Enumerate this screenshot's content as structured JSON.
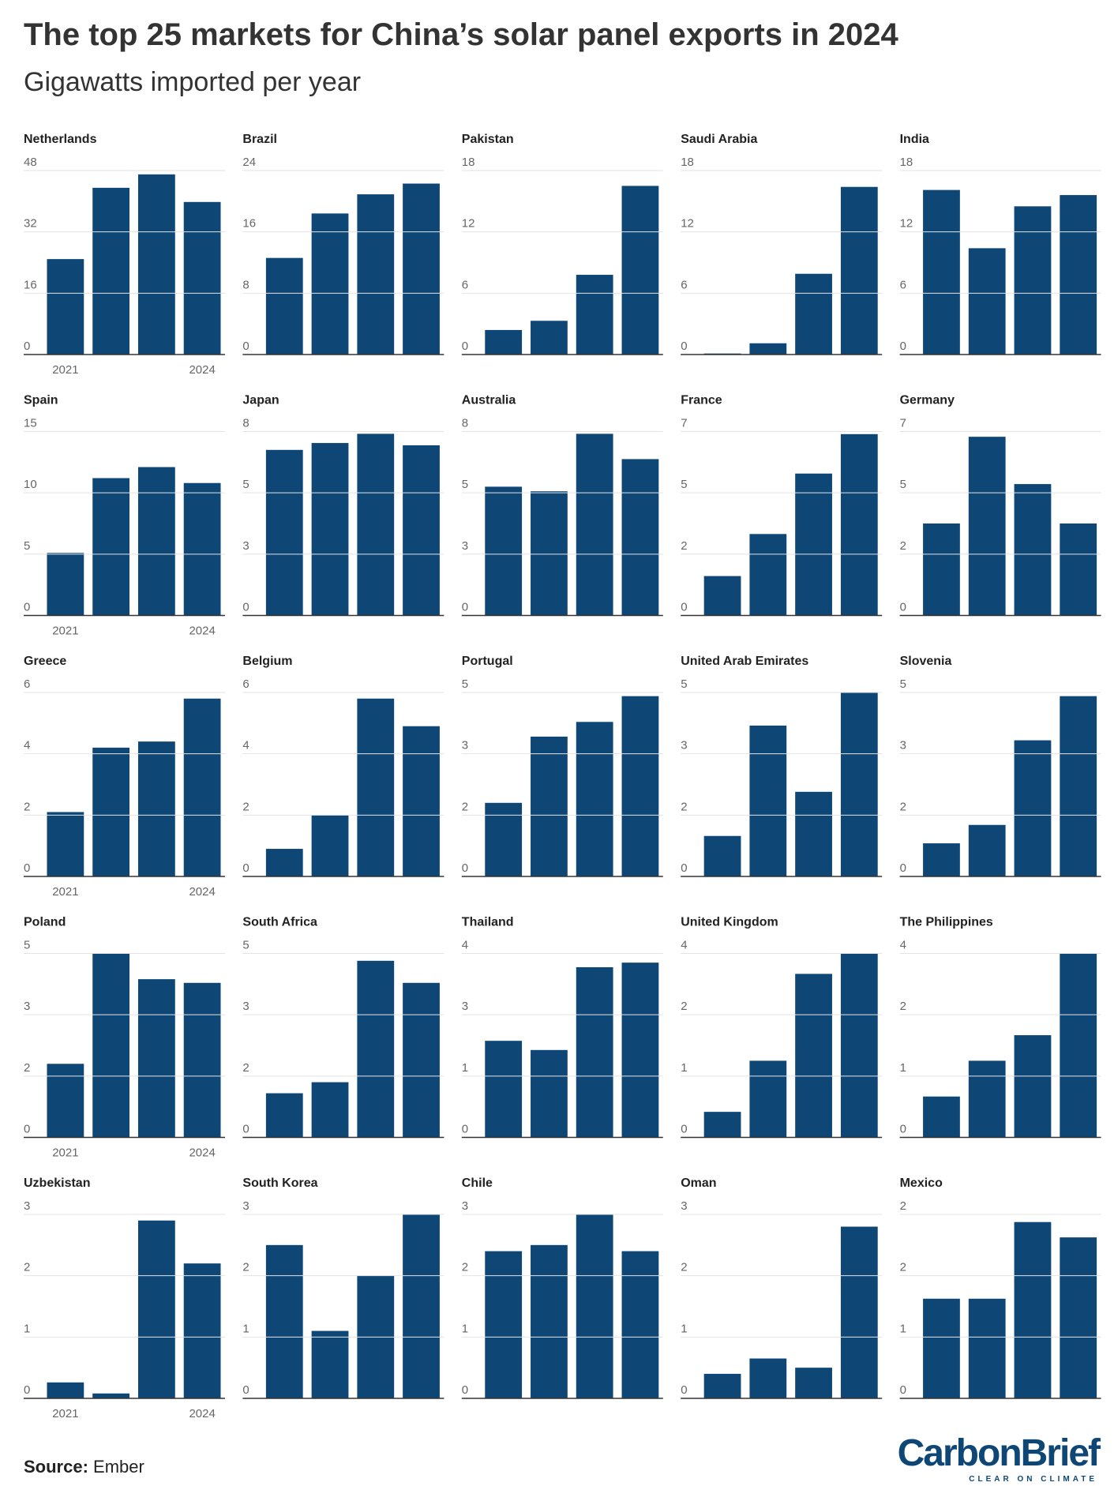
{
  "title": "The top 25 markets for China’s solar panel exports in 2024",
  "subtitle": "Gigawatts imported per year",
  "source_label": "Source:",
  "source": "Ember",
  "logo": {
    "name": "CarbonBrief",
    "tagline": "CLEAR ON CLIMATE"
  },
  "chart_data": [
    {
      "type": "bar",
      "title": "Netherlands",
      "categories": [
        "2021",
        null,
        null,
        "2024"
      ],
      "values": [
        24.9,
        43.5,
        47.0,
        39.8
      ],
      "color": "#0e4775",
      "ylim": [
        0,
        48
      ],
      "yticks": [
        0,
        16,
        32,
        48
      ],
      "grid": true
    },
    {
      "type": "bar",
      "title": "Brazil",
      "values": [
        12.6,
        18.4,
        20.9,
        22.3
      ],
      "color": "#0e4775",
      "ylim": [
        0,
        24
      ],
      "yticks": [
        0,
        8,
        16,
        24
      ],
      "grid": true
    },
    {
      "type": "bar",
      "title": "Pakistan",
      "values": [
        2.4,
        3.3,
        7.8,
        16.5
      ],
      "color": "#0e4775",
      "ylim": [
        0,
        18
      ],
      "yticks": [
        0,
        6,
        12,
        18
      ],
      "grid": true
    },
    {
      "type": "bar",
      "title": "Saudi Arabia",
      "values": [
        0.1,
        1.1,
        7.9,
        16.4
      ],
      "color": "#0e4775",
      "ylim": [
        0,
        18
      ],
      "yticks": [
        0,
        6,
        12,
        18
      ],
      "grid": true
    },
    {
      "type": "bar",
      "title": "India",
      "values": [
        16.1,
        10.4,
        14.5,
        15.6
      ],
      "color": "#0e4775",
      "ylim": [
        0,
        18
      ],
      "yticks": [
        0,
        6,
        12,
        18
      ],
      "grid": true
    },
    {
      "type": "bar",
      "title": "Spain",
      "categories": [
        "2021",
        null,
        null,
        "2024"
      ],
      "values": [
        5.1,
        11.2,
        12.1,
        10.8
      ],
      "color": "#0e4775",
      "ylim": [
        0,
        15
      ],
      "yticks": [
        0,
        5,
        10,
        15
      ],
      "grid": true
    },
    {
      "type": "bar",
      "title": "Japan",
      "values": [
        7.2,
        7.5,
        7.9,
        7.4
      ],
      "color": "#0e4775",
      "ylim": [
        0,
        8
      ],
      "yticks": [
        0,
        {
          "value": 2.667,
          "label": "3"
        },
        {
          "value": 5.333,
          "label": "5"
        },
        8
      ],
      "grid": true
    },
    {
      "type": "bar",
      "title": "Australia",
      "values": [
        5.6,
        5.4,
        7.9,
        6.8
      ],
      "color": "#0e4775",
      "ylim": [
        0,
        8
      ],
      "yticks": [
        0,
        {
          "value": 2.667,
          "label": "3"
        },
        {
          "value": 5.333,
          "label": "5"
        },
        8
      ],
      "grid": true
    },
    {
      "type": "bar",
      "title": "France",
      "values": [
        1.5,
        3.1,
        5.4,
        6.9
      ],
      "color": "#0e4775",
      "ylim": [
        0,
        7
      ],
      "yticks": [
        0,
        {
          "value": 2.333,
          "label": "2"
        },
        {
          "value": 4.667,
          "label": "5"
        },
        7
      ],
      "grid": true
    },
    {
      "type": "bar",
      "title": "Germany",
      "values": [
        3.5,
        6.8,
        5.0,
        3.5
      ],
      "color": "#0e4775",
      "ylim": [
        0,
        7
      ],
      "yticks": [
        0,
        {
          "value": 2.333,
          "label": "2"
        },
        {
          "value": 4.667,
          "label": "5"
        },
        7
      ],
      "grid": true
    },
    {
      "type": "bar",
      "title": "Greece",
      "categories": [
        "2021",
        null,
        null,
        "2024"
      ],
      "values": [
        2.1,
        4.2,
        4.4,
        5.8
      ],
      "color": "#0e4775",
      "ylim": [
        0,
        6
      ],
      "yticks": [
        0,
        2,
        4,
        6
      ],
      "grid": true
    },
    {
      "type": "bar",
      "title": "Belgium",
      "values": [
        0.9,
        2.0,
        5.8,
        4.9
      ],
      "color": "#0e4775",
      "ylim": [
        0,
        6
      ],
      "yticks": [
        0,
        2,
        4,
        6
      ],
      "grid": true
    },
    {
      "type": "bar",
      "title": "Portugal",
      "values": [
        2.0,
        3.8,
        4.2,
        4.9
      ],
      "color": "#0e4775",
      "ylim": [
        0,
        5
      ],
      "yticks": [
        0,
        {
          "value": 1.667,
          "label": "2"
        },
        {
          "value": 3.333,
          "label": "3"
        },
        5
      ],
      "grid": true
    },
    {
      "type": "bar",
      "title": "United Arab Emirates",
      "values": [
        1.1,
        4.1,
        2.3,
        5.0
      ],
      "color": "#0e4775",
      "ylim": [
        0,
        5
      ],
      "yticks": [
        0,
        {
          "value": 1.667,
          "label": "2"
        },
        {
          "value": 3.333,
          "label": "3"
        },
        5
      ],
      "grid": true
    },
    {
      "type": "bar",
      "title": "Slovenia",
      "values": [
        0.9,
        1.4,
        3.7,
        4.9
      ],
      "color": "#0e4775",
      "ylim": [
        0,
        5
      ],
      "yticks": [
        0,
        {
          "value": 1.667,
          "label": "2"
        },
        {
          "value": 3.333,
          "label": "3"
        },
        5
      ],
      "grid": true
    },
    {
      "type": "bar",
      "title": "Poland",
      "categories": [
        "2021",
        null,
        null,
        "2024"
      ],
      "values": [
        2.0,
        5.0,
        4.3,
        4.2
      ],
      "color": "#0e4775",
      "ylim": [
        0,
        5
      ],
      "yticks": [
        0,
        {
          "value": 1.667,
          "label": "2"
        },
        {
          "value": 3.333,
          "label": "3"
        },
        5
      ],
      "grid": true
    },
    {
      "type": "bar",
      "title": "South Africa",
      "values": [
        1.2,
        1.5,
        4.8,
        4.2
      ],
      "color": "#0e4775",
      "ylim": [
        0,
        5
      ],
      "yticks": [
        0,
        {
          "value": 1.667,
          "label": "2"
        },
        {
          "value": 3.333,
          "label": "3"
        },
        5
      ],
      "grid": true
    },
    {
      "type": "bar",
      "title": "Thailand",
      "values": [
        2.1,
        1.9,
        3.7,
        3.8
      ],
      "color": "#0e4775",
      "ylim": [
        0,
        4
      ],
      "yticks": [
        0,
        {
          "value": 1.333,
          "label": "1"
        },
        {
          "value": 2.667,
          "label": "3"
        },
        4
      ],
      "grid": true
    },
    {
      "type": "bar",
      "title": "United Kingdom",
      "values": [
        0.5,
        1.5,
        3.2,
        3.6
      ],
      "color": "#0e4775",
      "ylim": [
        0,
        3.6
      ],
      "yticks": [
        0,
        {
          "value": 1.2,
          "label": "1"
        },
        {
          "value": 2.4,
          "label": "2"
        },
        {
          "value": 3.6,
          "label": "4"
        }
      ],
      "grid": true
    },
    {
      "type": "bar",
      "title": "The Philippines",
      "values": [
        0.8,
        1.5,
        2.0,
        3.6
      ],
      "color": "#0e4775",
      "ylim": [
        0,
        3.6
      ],
      "yticks": [
        0,
        {
          "value": 1.2,
          "label": "1"
        },
        {
          "value": 2.4,
          "label": "2"
        },
        {
          "value": 3.6,
          "label": "4"
        }
      ],
      "grid": true
    },
    {
      "type": "bar",
      "title": "Uzbekistan",
      "categories": [
        "2021",
        null,
        null,
        "2024"
      ],
      "values": [
        0.26,
        0.08,
        2.9,
        2.2
      ],
      "color": "#0e4775",
      "ylim": [
        0,
        3
      ],
      "yticks": [
        0,
        1,
        2,
        3
      ],
      "grid": true
    },
    {
      "type": "bar",
      "title": "South Korea",
      "values": [
        2.5,
        1.1,
        2.0,
        3.0
      ],
      "color": "#0e4775",
      "ylim": [
        0,
        3
      ],
      "yticks": [
        0,
        1,
        2,
        3
      ],
      "grid": true
    },
    {
      "type": "bar",
      "title": "Chile",
      "values": [
        2.4,
        2.5,
        3.0,
        2.4
      ],
      "color": "#0e4775",
      "ylim": [
        0,
        3
      ],
      "yticks": [
        0,
        1,
        2,
        3
      ],
      "grid": true
    },
    {
      "type": "bar",
      "title": "Oman",
      "values": [
        0.4,
        0.65,
        0.5,
        2.8
      ],
      "color": "#0e4775",
      "ylim": [
        0,
        3
      ],
      "yticks": [
        0,
        1,
        2,
        3
      ],
      "grid": true
    },
    {
      "type": "bar",
      "title": "Mexico",
      "values": [
        1.3,
        1.3,
        2.3,
        2.1
      ],
      "color": "#0e4775",
      "ylim": [
        0,
        2.4
      ],
      "yticks": [
        0,
        {
          "value": 0.8,
          "label": "1"
        },
        {
          "value": 1.6,
          "label": "2"
        },
        {
          "value": 2.4,
          "label": "2"
        }
      ],
      "grid": true
    }
  ]
}
